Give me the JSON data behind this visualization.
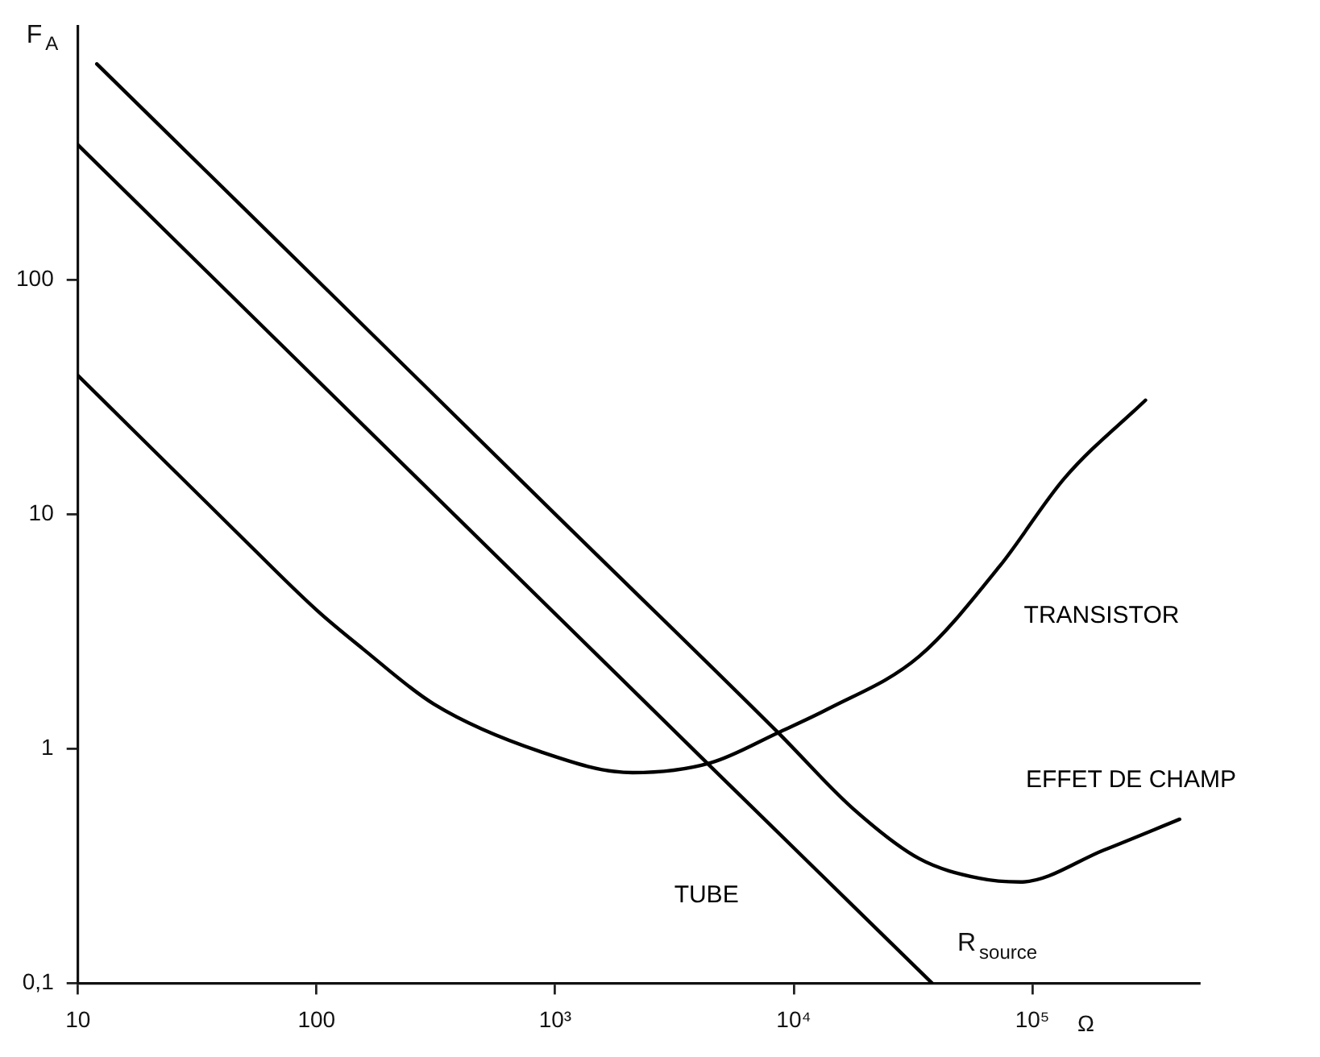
{
  "chart_data": {
    "type": "line",
    "ylabel": "F$_{A}$",
    "xlabel": "R$_{source}$",
    "annotations": [
      "Ω"
    ],
    "xlim": [
      10,
      500000
    ],
    "ylim": [
      0.1,
      1200
    ],
    "xticks": [
      10,
      100,
      {
        "value": 1000,
        "label": "10³"
      },
      {
        "value": 10000,
        "label": "10⁴"
      },
      {
        "value": 100000,
        "label": "10⁵"
      }
    ],
    "yticks": [
      {
        "value": 0.1,
        "label": "0,1"
      },
      1,
      10,
      100
    ],
    "log": "xy",
    "grid": false,
    "legend": false,
    "marker": "none",
    "line_style": "solid",
    "series": [
      {
        "name": "TRANSISTOR",
        "color": "#000000",
        "x": [
          10,
          45,
          100,
          156,
          310,
          870,
          2110,
          4480,
          8600,
          13800,
          33500,
          73000,
          137000,
          298000
        ],
        "values": [
          39,
          8.6,
          3.9,
          2.67,
          1.55,
          0.97,
          0.79,
          0.87,
          1.17,
          1.47,
          2.47,
          6,
          14.3,
          30.6
        ]
      },
      {
        "name": "EFFET DE CHAMP",
        "color": "#000000",
        "x": [
          12,
          100,
          1000,
          8600,
          17900,
          33500,
          60000,
          89000,
          200000,
          414000
        ],
        "values": [
          830,
          100,
          10,
          1.17,
          0.55,
          0.34,
          0.28,
          0.27,
          0.37,
          0.5
        ]
      },
      {
        "name": "TUBE",
        "color": "#000000",
        "x": [
          10,
          4480,
          38000
        ],
        "values": [
          375,
          0.84,
          0.1
        ]
      }
    ]
  }
}
